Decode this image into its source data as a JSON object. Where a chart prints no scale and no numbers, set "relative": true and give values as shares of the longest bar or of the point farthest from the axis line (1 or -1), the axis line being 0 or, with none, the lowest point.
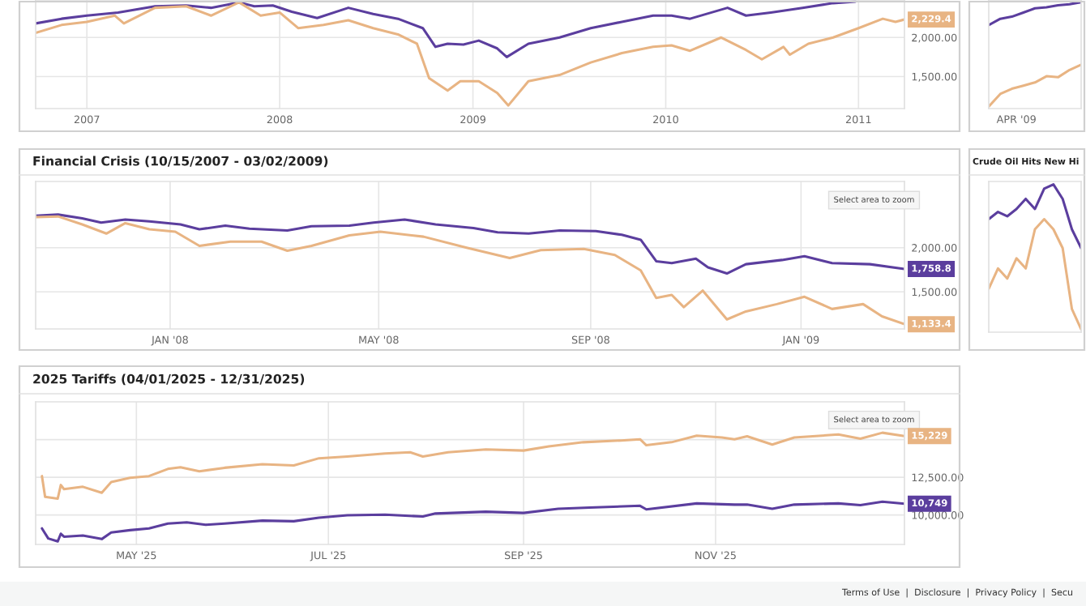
{
  "chart_data": [
    {
      "type": "line",
      "grid": true,
      "xlim": [
        "2006-09-26",
        "2011-03-29"
      ],
      "ylim": [
        1090,
        2480
      ],
      "xticks": [
        {
          "value": "2007-01-01",
          "label": "2007"
        },
        {
          "value": "2008-01-01",
          "label": "2008"
        },
        {
          "value": "2009-01-01",
          "label": "2009"
        },
        {
          "value": "2010-01-01",
          "label": "2010"
        },
        {
          "value": "2011-01-01",
          "label": "2011"
        }
      ],
      "yticks": [
        {
          "value": 1500,
          "label": "1,500.00"
        },
        {
          "value": 2000,
          "label": "2,000.00"
        }
      ],
      "annotations": [
        {
          "text": "2,229.4",
          "x": "2011-03-29",
          "y": 2230
        }
      ],
      "series": [
        {
          "color": "#5b3e9e",
          "x": [
            "2006-09-26",
            "2006-11-14",
            "2007-01-01",
            "2007-03-01",
            "2007-05-10",
            "2007-07-08",
            "2007-08-24",
            "2007-10-16",
            "2007-11-14",
            "2007-12-19",
            "2008-01-24",
            "2008-03-12",
            "2008-05-10",
            "2008-06-26",
            "2008-08-12",
            "2008-09-28",
            "2008-10-22",
            "2008-11-14",
            "2008-12-14",
            "2009-01-12",
            "2009-02-16",
            "2009-03-06",
            "2009-04-16",
            "2009-06-14",
            "2009-08-12",
            "2009-10-10",
            "2009-12-08",
            "2010-01-12",
            "2010-02-16",
            "2010-04-28",
            "2010-06-02",
            "2010-07-19",
            "2010-09-17",
            "2010-11-14",
            "2010-12-26"
          ],
          "values": [
            2180,
            2240,
            2280,
            2320,
            2400,
            2410,
            2380,
            2450,
            2400,
            2410,
            2330,
            2250,
            2380,
            2300,
            2240,
            2120,
            1880,
            1920,
            1910,
            1960,
            1860,
            1750,
            1920,
            2000,
            2120,
            2200,
            2280,
            2280,
            2240,
            2380,
            2280,
            2320,
            2380,
            2440,
            2460
          ]
        },
        {
          "color": "#e8b483",
          "x": [
            "2006-09-26",
            "2006-11-14",
            "2007-01-01",
            "2007-02-23",
            "2007-03-12",
            "2007-05-10",
            "2007-07-08",
            "2007-08-24",
            "2007-10-16",
            "2007-11-26",
            "2008-01-01",
            "2008-02-05",
            "2008-03-24",
            "2008-05-10",
            "2008-06-26",
            "2008-08-12",
            "2008-09-17",
            "2008-10-10",
            "2008-11-14",
            "2008-12-08",
            "2009-01-12",
            "2009-02-16",
            "2009-03-09",
            "2009-04-16",
            "2009-06-14",
            "2009-08-12",
            "2009-10-10",
            "2009-12-08",
            "2010-01-12",
            "2010-02-16",
            "2010-04-16",
            "2010-06-02",
            "2010-07-02",
            "2010-08-12",
            "2010-08-24",
            "2010-09-28",
            "2010-11-14",
            "2011-01-01",
            "2011-02-16",
            "2011-03-12",
            "2011-03-29"
          ],
          "values": [
            2060,
            2160,
            2200,
            2280,
            2180,
            2380,
            2400,
            2280,
            2450,
            2280,
            2320,
            2120,
            2160,
            2220,
            2120,
            2040,
            1920,
            1480,
            1320,
            1440,
            1440,
            1290,
            1130,
            1440,
            1520,
            1680,
            1800,
            1880,
            1900,
            1830,
            2000,
            1840,
            1720,
            1880,
            1780,
            1920,
            2000,
            2120,
            2240,
            2200,
            2230
          ]
        }
      ]
    },
    {
      "type": "line",
      "relative": true,
      "categories": [
        null,
        null,
        null,
        null,
        null,
        null,
        null,
        null,
        null
      ],
      "annotations": [
        "APR '09"
      ],
      "series": [
        {
          "color": "#5b3e9e",
          "values": [
            0.78,
            0.84,
            0.86,
            0.9,
            0.94,
            0.95,
            0.97,
            0.98,
            1.0
          ]
        },
        {
          "color": "#e8b483",
          "values": [
            0,
            0.12,
            0.17,
            0.2,
            0.23,
            0.29,
            0.28,
            0.35,
            0.4
          ]
        }
      ]
    },
    {
      "type": "line",
      "grid": true,
      "title": "Financial Crisis (10/15/2007 - 03/02/2009)",
      "xlim": [
        "2007-10-15",
        "2009-03-02"
      ],
      "ylim": [
        1080,
        2750
      ],
      "xticks": [
        {
          "value": "2008-01-01",
          "label": "JAN '08"
        },
        {
          "value": "2008-05-01",
          "label": "MAY '08"
        },
        {
          "value": "2008-09-01",
          "label": "SEP '08"
        },
        {
          "value": "2009-01-01",
          "label": "JAN '09"
        }
      ],
      "yticks": [
        {
          "value": 1500,
          "label": "1,500.00"
        },
        {
          "value": 2000,
          "label": "2,000.00"
        }
      ],
      "annotations": [
        "Select area to zoom",
        {
          "text": "1,758.8",
          "x": "2009-03-02",
          "y": 1758.8
        },
        {
          "text": "1,133.4",
          "x": "2009-03-02",
          "y": 1133.4
        }
      ],
      "series": [
        {
          "color": "#5b3e9e",
          "x": [
            "2007-10-15",
            "2007-10-28",
            "2007-11-11",
            "2007-11-22",
            "2007-12-06",
            "2007-12-20",
            "2008-01-07",
            "2008-01-18",
            "2008-02-02",
            "2008-02-16",
            "2008-03-09",
            "2008-03-23",
            "2008-04-14",
            "2008-04-28",
            "2008-05-16",
            "2008-06-03",
            "2008-06-25",
            "2008-07-09",
            "2008-07-27",
            "2008-08-14",
            "2008-09-04",
            "2008-09-19",
            "2008-09-30",
            "2008-10-09",
            "2008-10-18",
            "2008-11-01",
            "2008-11-08",
            "2008-11-19",
            "2008-11-30",
            "2008-12-21",
            "2009-01-03",
            "2009-01-19",
            "2009-02-10",
            "2009-03-02"
          ],
          "values": [
            2361,
            2375,
            2333,
            2285,
            2319,
            2299,
            2264,
            2208,
            2250,
            2215,
            2194,
            2243,
            2250,
            2285,
            2319,
            2264,
            2222,
            2174,
            2160,
            2194,
            2188,
            2146,
            2090,
            1847,
            1826,
            1875,
            1778,
            1708,
            1813,
            1861,
            1903,
            1826,
            1813,
            1758.8
          ]
        },
        {
          "color": "#e8b483",
          "x": [
            "2007-10-15",
            "2007-10-28",
            "2007-11-11",
            "2007-11-25",
            "2007-12-06",
            "2007-12-20",
            "2008-01-04",
            "2008-01-18",
            "2008-02-05",
            "2008-02-23",
            "2008-03-09",
            "2008-03-23",
            "2008-04-14",
            "2008-05-02",
            "2008-05-27",
            "2008-06-21",
            "2008-07-16",
            "2008-08-03",
            "2008-08-28",
            "2008-09-15",
            "2008-09-30",
            "2008-10-09",
            "2008-10-18",
            "2008-10-25",
            "2008-11-05",
            "2008-11-19",
            "2008-11-30",
            "2008-12-18",
            "2009-01-03",
            "2009-01-19",
            "2009-02-06",
            "2009-02-17",
            "2009-03-02"
          ],
          "values": [
            2347,
            2354,
            2264,
            2160,
            2278,
            2208,
            2181,
            2021,
            2069,
            2069,
            1965,
            2021,
            2139,
            2181,
            2125,
            2000,
            1882,
            1972,
            1986,
            1917,
            1743,
            1431,
            1465,
            1326,
            1514,
            1188,
            1278,
            1361,
            1444,
            1306,
            1361,
            1222,
            1133.4
          ]
        }
      ]
    },
    {
      "type": "line",
      "relative": true,
      "title": "Crude Oil Hits New Hi",
      "categories": [
        null,
        null,
        null,
        null,
        null,
        null,
        null,
        null,
        null,
        null,
        null
      ],
      "series": [
        {
          "color": "#5b3e9e",
          "values": [
            0.76,
            0.81,
            0.78,
            0.83,
            0.9,
            0.83,
            0.97,
            1.0,
            0.9,
            0.69,
            0.56
          ]
        },
        {
          "color": "#e8b483",
          "values": [
            0.28,
            0.42,
            0.35,
            0.49,
            0.42,
            0.69,
            0.76,
            0.69,
            0.56,
            0.14,
            0
          ]
        }
      ]
    },
    {
      "type": "line",
      "grid": true,
      "title": "2025 Tariffs (04/01/2025 - 12/31/2025)",
      "xlim": [
        "2025-03-30",
        "2025-12-31"
      ],
      "ylim": [
        8050,
        17500
      ],
      "xticks": [
        {
          "value": "2025-05-01",
          "label": "MAY '25"
        },
        {
          "value": "2025-07-01",
          "label": "JUL '25"
        },
        {
          "value": "2025-09-01",
          "label": "SEP '25"
        },
        {
          "value": "2025-11-01",
          "label": "NOV '25"
        }
      ],
      "yticks": [
        {
          "value": 10000,
          "label": "10,000.00"
        },
        {
          "value": 12500,
          "label": "12,500.00"
        },
        {
          "value": 15000,
          "label": null
        }
      ],
      "annotations": [
        "Select area to zoom",
        {
          "text": "15,229",
          "x": "2025-12-31",
          "y": 15229
        },
        {
          "text": "10,749",
          "x": "2025-12-31",
          "y": 10749
        },
        "Terms of Use  |  Disclosure  |  Privacy Policy  |  Secu"
      ],
      "series": [
        {
          "color": "#e8b483",
          "x": [
            "2025-04-01",
            "2025-04-02",
            "2025-04-06",
            "2025-04-07",
            "2025-04-08",
            "2025-04-14",
            "2025-04-20",
            "2025-04-23",
            "2025-04-29",
            "2025-05-05",
            "2025-05-11",
            "2025-05-15",
            "2025-05-21",
            "2025-05-29",
            "2025-06-10",
            "2025-06-20",
            "2025-06-28",
            "2025-07-07",
            "2025-07-19",
            "2025-07-27",
            "2025-07-31",
            "2025-08-08",
            "2025-08-20",
            "2025-09-01",
            "2025-09-09",
            "2025-09-20",
            "2025-10-02",
            "2025-10-08",
            "2025-10-10",
            "2025-10-18",
            "2025-10-26",
            "2025-11-03",
            "2025-11-07",
            "2025-11-11",
            "2025-11-19",
            "2025-11-26",
            "2025-12-10",
            "2025-12-17",
            "2025-12-24",
            "2025-12-31"
          ],
          "values": [
            12579,
            11201,
            11083,
            11988,
            11713,
            11870,
            11476,
            12185,
            12461,
            12579,
            13051,
            13169,
            12894,
            13130,
            13366,
            13287,
            13760,
            13878,
            14075,
            14154,
            13878,
            14154,
            14350,
            14272,
            14547,
            14823,
            14941,
            15020,
            14626,
            14823,
            15256,
            15138,
            15020,
            15217,
            14665,
            15138,
            15335,
            15059,
            15453,
            15229
          ]
        },
        {
          "color": "#5b3e9e",
          "x": [
            "2025-04-01",
            "2025-04-03",
            "2025-04-06",
            "2025-04-07",
            "2025-04-08",
            "2025-04-14",
            "2025-04-20",
            "2025-04-23",
            "2025-04-29",
            "2025-05-05",
            "2025-05-11",
            "2025-05-17",
            "2025-05-23",
            "2025-05-29",
            "2025-06-10",
            "2025-06-20",
            "2025-06-28",
            "2025-07-07",
            "2025-07-19",
            "2025-07-31",
            "2025-08-04",
            "2025-08-20",
            "2025-09-01",
            "2025-09-12",
            "2025-09-22",
            "2025-10-08",
            "2025-10-10",
            "2025-10-26",
            "2025-11-07",
            "2025-11-11",
            "2025-11-19",
            "2025-11-26",
            "2025-12-10",
            "2025-12-17",
            "2025-12-24",
            "2025-12-31"
          ],
          "values": [
            9114,
            8445,
            8248,
            8760,
            8563,
            8642,
            8406,
            8839,
            8996,
            9114,
            9429,
            9508,
            9350,
            9429,
            9626,
            9587,
            9823,
            9980,
            10020,
            9902,
            10098,
            10217,
            10138,
            10413,
            10492,
            10610,
            10374,
            10768,
            10689,
            10689,
            10413,
            10689,
            10768,
            10650,
            10886,
            10749
          ]
        }
      ]
    }
  ]
}
